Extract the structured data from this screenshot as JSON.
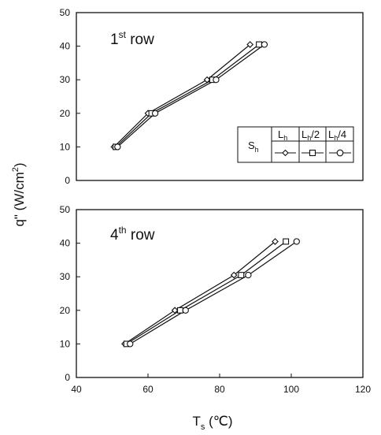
{
  "chart_data": [
    {
      "type": "line",
      "panel_label": {
        "base": "1",
        "sup": "st",
        "rest": " row"
      },
      "xlim": [
        40,
        120
      ],
      "ylim": [
        0,
        50
      ],
      "x_ticks": [],
      "y_ticks": [
        0,
        10,
        20,
        30,
        40,
        50
      ],
      "y_tick_labels": [
        "0",
        "10",
        "20",
        "30",
        "40",
        "50"
      ],
      "grid": false,
      "legend": {
        "placement": "lower-right",
        "row_label": {
          "base": "S",
          "sub": "h"
        },
        "entries": [
          {
            "base": "L",
            "sub": "h",
            "rest": "",
            "marker": "diamond"
          },
          {
            "base": "L",
            "sub": "h",
            "rest": "/2",
            "marker": "square"
          },
          {
            "base": "L",
            "sub": "h",
            "rest": "/4",
            "marker": "circle"
          }
        ]
      },
      "series": [
        {
          "marker": "diamond",
          "x": [
            50.5,
            60.0,
            76.5,
            88.5
          ],
          "y": [
            10,
            20,
            30,
            40.5
          ]
        },
        {
          "marker": "square",
          "x": [
            51.0,
            61.0,
            78.0,
            91.0
          ],
          "y": [
            10,
            20,
            30,
            40.5
          ]
        },
        {
          "marker": "circle",
          "x": [
            51.5,
            62.0,
            79.0,
            92.5
          ],
          "y": [
            10,
            20,
            30,
            40.5
          ]
        }
      ]
    },
    {
      "type": "line",
      "panel_label": {
        "base": "4",
        "sup": "th",
        "rest": " row"
      },
      "xlim": [
        40,
        120
      ],
      "ylim": [
        0,
        50
      ],
      "x_ticks": [
        40,
        60,
        80,
        100,
        120
      ],
      "x_tick_labels": [
        "40",
        "60",
        "80",
        "100",
        "120"
      ],
      "y_ticks": [
        0,
        10,
        20,
        30,
        40,
        50
      ],
      "y_tick_labels": [
        "0",
        "10",
        "20",
        "30",
        "40",
        "50"
      ],
      "grid": false,
      "series": [
        {
          "marker": "diamond",
          "x": [
            53.5,
            67.5,
            84.0,
            95.5
          ],
          "y": [
            10,
            20,
            30.5,
            40.5
          ]
        },
        {
          "marker": "square",
          "x": [
            54.0,
            69.0,
            86.0,
            98.5
          ],
          "y": [
            10,
            20,
            30.5,
            40.5
          ]
        },
        {
          "marker": "circle",
          "x": [
            55.0,
            70.5,
            88.0,
            101.5
          ],
          "y": [
            10,
            20,
            30.5,
            40.5
          ]
        }
      ]
    }
  ],
  "axes_titles": {
    "ylabel": {
      "pre": "q\" (W/cm",
      "sup": "2",
      "post": ")"
    },
    "xlabel": {
      "base": "T",
      "sub": "s",
      "rest": " (℃)"
    }
  }
}
